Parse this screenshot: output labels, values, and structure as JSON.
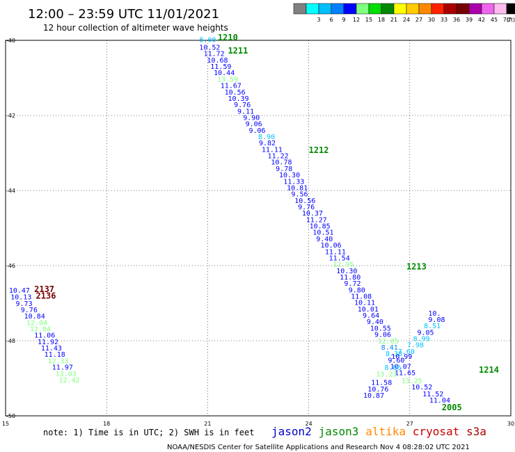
{
  "header": {
    "title": "12:00 – 23:59 UTC 11/01/2021",
    "subtitle": "12 hour collection of altimeter wave heights"
  },
  "legend_scale": {
    "unit": "(ft)",
    "bins": [
      {
        "label": "",
        "color": "#808080"
      },
      {
        "label": "3",
        "color": "#00ffff"
      },
      {
        "label": "6",
        "color": "#00bfff"
      },
      {
        "label": "9",
        "color": "#0080ff"
      },
      {
        "label": "12",
        "color": "#0000ff"
      },
      {
        "label": "15",
        "color": "#80ff80"
      },
      {
        "label": "18",
        "color": "#00dd00"
      },
      {
        "label": "21",
        "color": "#008800"
      },
      {
        "label": "24",
        "color": "#ffff00"
      },
      {
        "label": "27",
        "color": "#ffcc00"
      },
      {
        "label": "30",
        "color": "#ff8800"
      },
      {
        "label": "33",
        "color": "#ff2200"
      },
      {
        "label": "36",
        "color": "#aa0000"
      },
      {
        "label": "39",
        "color": "#770000"
      },
      {
        "label": "42",
        "color": "#aa00aa"
      },
      {
        "label": "45",
        "color": "#ee66ee"
      },
      {
        "label": "70",
        "color": "#ffbbee"
      },
      {
        "label": "",
        "color": "#000000"
      }
    ]
  },
  "footer": {
    "note": "note: 1) Time is in UTC; 2) SWH is in feet",
    "credit": "NOAA/NESDIS Center for Satellite Applications and Research    Nov  4 08:28:02 UTC 2021"
  },
  "satellites": [
    {
      "name": "jason2",
      "color": "#0000cc"
    },
    {
      "name": "jason3",
      "color": "#008800"
    },
    {
      "name": "altika",
      "color": "#ff8800"
    },
    {
      "name": "cryosat",
      "color": "#cc0000"
    },
    {
      "name": "s3a",
      "color": "#aa0000"
    }
  ],
  "map": {
    "x_ticks": [
      15,
      18,
      21,
      24,
      27,
      30
    ],
    "x_tick_labels": [
      "15",
      "18",
      "21",
      "24",
      "27",
      "30"
    ],
    "y_ticks": [
      -40,
      -42,
      -44,
      -46,
      -48,
      -50
    ],
    "y_tick_labels": [
      "-40",
      "-42",
      "-44",
      "-46",
      "-48",
      "-50"
    ],
    "xlim": [
      15,
      30
    ],
    "ylim": [
      -50,
      -40
    ],
    "grid": true,
    "times": [
      {
        "text": "1210",
        "lon": 21.3,
        "lat": -40.0,
        "color": "#008800"
      },
      {
        "text": "1211",
        "lon": 21.6,
        "lat": -40.35,
        "color": "#008800"
      },
      {
        "text": "1212",
        "lon": 24.0,
        "lat": -43.0,
        "color": "#008800"
      },
      {
        "text": "1213",
        "lon": 26.9,
        "lat": -46.1,
        "color": "#008800"
      },
      {
        "text": "1214",
        "lon": 29.05,
        "lat": -48.85,
        "color": "#008800"
      },
      {
        "text": "2005",
        "lon": 27.95,
        "lat": -49.85,
        "color": "#008800"
      },
      {
        "text": "2137",
        "lon": 15.85,
        "lat": -46.7,
        "color": "#770000"
      },
      {
        "text": "2136",
        "lon": 15.9,
        "lat": -46.88,
        "color": "#770000"
      }
    ],
    "observations": [
      {
        "v": "8.00",
        "lon": 20.75,
        "lat": -40.05,
        "c": "#00bfff"
      },
      {
        "v": "10.52",
        "lon": 20.75,
        "lat": -40.25,
        "c": "#0000ff"
      },
      {
        "v": "11.72",
        "lon": 20.88,
        "lat": -40.42,
        "c": "#0000ff"
      },
      {
        "v": "10.68",
        "lon": 20.98,
        "lat": -40.59,
        "c": "#0000ff"
      },
      {
        "v": "11.59",
        "lon": 21.08,
        "lat": -40.76,
        "c": "#0000ff"
      },
      {
        "v": "10.44",
        "lon": 21.18,
        "lat": -40.93,
        "c": "#0000ff"
      },
      {
        "v": "13.59",
        "lon": 21.28,
        "lat": -41.1,
        "c": "#80ff80"
      },
      {
        "v": "11.67",
        "lon": 21.38,
        "lat": -41.27,
        "c": "#0000ff"
      },
      {
        "v": "10.56",
        "lon": 21.5,
        "lat": -41.44,
        "c": "#0000ff"
      },
      {
        "v": "10.39",
        "lon": 21.6,
        "lat": -41.61,
        "c": "#0000ff"
      },
      {
        "v": "9.76",
        "lon": 21.78,
        "lat": -41.78,
        "c": "#0000ff"
      },
      {
        "v": "9.11",
        "lon": 21.88,
        "lat": -41.95,
        "c": "#0000ff"
      },
      {
        "v": "9.90",
        "lon": 22.05,
        "lat": -42.12,
        "c": "#0000ff"
      },
      {
        "v": "9.06",
        "lon": 22.12,
        "lat": -42.29,
        "c": "#0000ff"
      },
      {
        "v": "9.06",
        "lon": 22.22,
        "lat": -42.46,
        "c": "#0000ff"
      },
      {
        "v": "8.90",
        "lon": 22.5,
        "lat": -42.63,
        "c": "#00bfff"
      },
      {
        "v": "9.82",
        "lon": 22.52,
        "lat": -42.8,
        "c": "#0000ff"
      },
      {
        "v": "11.11",
        "lon": 22.6,
        "lat": -42.97,
        "c": "#0000ff"
      },
      {
        "v": "11.22",
        "lon": 22.78,
        "lat": -43.14,
        "c": "#0000ff"
      },
      {
        "v": "10.78",
        "lon": 22.88,
        "lat": -43.31,
        "c": "#0000ff"
      },
      {
        "v": "9.78",
        "lon": 23.02,
        "lat": -43.48,
        "c": "#0000ff"
      },
      {
        "v": "10.30",
        "lon": 23.12,
        "lat": -43.65,
        "c": "#0000ff"
      },
      {
        "v": "11.33",
        "lon": 23.25,
        "lat": -43.82,
        "c": "#0000ff"
      },
      {
        "v": "10.81",
        "lon": 23.35,
        "lat": -43.99,
        "c": "#0000ff"
      },
      {
        "v": "9.56",
        "lon": 23.48,
        "lat": -44.16,
        "c": "#0000ff"
      },
      {
        "v": "10.56",
        "lon": 23.58,
        "lat": -44.33,
        "c": "#0000ff"
      },
      {
        "v": "9.76",
        "lon": 23.68,
        "lat": -44.5,
        "c": "#0000ff"
      },
      {
        "v": "10.37",
        "lon": 23.8,
        "lat": -44.67,
        "c": "#0000ff"
      },
      {
        "v": "11.27",
        "lon": 23.92,
        "lat": -44.84,
        "c": "#0000ff"
      },
      {
        "v": "10.85",
        "lon": 24.02,
        "lat": -45.01,
        "c": "#0000ff"
      },
      {
        "v": "10.51",
        "lon": 24.12,
        "lat": -45.18,
        "c": "#0000ff"
      },
      {
        "v": "9.40",
        "lon": 24.22,
        "lat": -45.35,
        "c": "#0000ff"
      },
      {
        "v": "10.06",
        "lon": 24.35,
        "lat": -45.52,
        "c": "#0000ff"
      },
      {
        "v": "11.11",
        "lon": 24.48,
        "lat": -45.69,
        "c": "#0000ff"
      },
      {
        "v": "11.54",
        "lon": 24.6,
        "lat": -45.86,
        "c": "#0000ff"
      },
      {
        "v": "12.95",
        "lon": 24.72,
        "lat": -46.03,
        "c": "#80ff80"
      },
      {
        "v": "10.30",
        "lon": 24.82,
        "lat": -46.2,
        "c": "#0000ff"
      },
      {
        "v": "11.80",
        "lon": 24.92,
        "lat": -46.37,
        "c": "#0000ff"
      },
      {
        "v": "9.72",
        "lon": 25.05,
        "lat": -46.54,
        "c": "#0000ff"
      },
      {
        "v": "9.80",
        "lon": 25.18,
        "lat": -46.71,
        "c": "#0000ff"
      },
      {
        "v": "11.08",
        "lon": 25.25,
        "lat": -46.88,
        "c": "#0000ff"
      },
      {
        "v": "10.11",
        "lon": 25.35,
        "lat": -47.05,
        "c": "#0000ff"
      },
      {
        "v": "10.01",
        "lon": 25.45,
        "lat": -47.22,
        "c": "#0000ff"
      },
      {
        "v": "9.64",
        "lon": 25.6,
        "lat": -47.39,
        "c": "#0000ff"
      },
      {
        "v": "9.40",
        "lon": 25.72,
        "lat": -47.56,
        "c": "#0000ff"
      },
      {
        "v": "10.55",
        "lon": 25.82,
        "lat": -47.73,
        "c": "#0000ff"
      },
      {
        "v": "9.06",
        "lon": 25.95,
        "lat": -47.9,
        "c": "#0000ff"
      },
      {
        "v": "12.05",
        "lon": 26.05,
        "lat": -48.07,
        "c": "#80ff80"
      },
      {
        "v": "8.41",
        "lon": 26.15,
        "lat": -48.24,
        "c": "#0080ff"
      },
      {
        "v": "8.38",
        "lon": 26.28,
        "lat": -48.41,
        "c": "#00bfff"
      },
      {
        "v": "10.99",
        "lon": 26.45,
        "lat": -48.48,
        "c": "#0000ff"
      },
      {
        "v": "9.60",
        "lon": 26.35,
        "lat": -48.58,
        "c": "#0000ff"
      },
      {
        "v": "10.07",
        "lon": 26.42,
        "lat": -48.75,
        "c": "#0000ff"
      },
      {
        "v": "8.06",
        "lon": 26.25,
        "lat": -48.78,
        "c": "#00bfff"
      },
      {
        "v": "11.65",
        "lon": 26.55,
        "lat": -48.92,
        "c": "#0000ff"
      },
      {
        "v": "13.23",
        "lon": 26.0,
        "lat": -48.95,
        "c": "#80ff80"
      },
      {
        "v": "13.25",
        "lon": 26.75,
        "lat": -49.13,
        "c": "#80ff80"
      },
      {
        "v": "11.58",
        "lon": 25.85,
        "lat": -49.18,
        "c": "#0000ff"
      },
      {
        "v": "10.52",
        "lon": 27.05,
        "lat": -49.3,
        "c": "#0000ff"
      },
      {
        "v": "10.76",
        "lon": 25.75,
        "lat": -49.35,
        "c": "#0000ff"
      },
      {
        "v": "10.87",
        "lon": 25.62,
        "lat": -49.52,
        "c": "#0000ff"
      },
      {
        "v": "11.52",
        "lon": 27.38,
        "lat": -49.48,
        "c": "#0000ff"
      },
      {
        "v": "11.04",
        "lon": 27.58,
        "lat": -49.65,
        "c": "#0000ff"
      },
      {
        "v": "7.60",
        "lon": 26.65,
        "lat": -48.35,
        "c": "#00bfff"
      },
      {
        "v": "7.98",
        "lon": 26.92,
        "lat": -48.18,
        "c": "#00bfff"
      },
      {
        "v": "8.99",
        "lon": 27.1,
        "lat": -48.01,
        "c": "#00bfff"
      },
      {
        "v": "9.05",
        "lon": 27.22,
        "lat": -47.84,
        "c": "#0000ff"
      },
      {
        "v": "8.51",
        "lon": 27.42,
        "lat": -47.67,
        "c": "#00bfff"
      },
      {
        "v": "9.08",
        "lon": 27.55,
        "lat": -47.5,
        "c": "#0000ff"
      },
      {
        "v": "10.",
        "lon": 27.55,
        "lat": -47.33,
        "c": "#0000ff"
      },
      {
        "v": "10.47",
        "lon": 15.1,
        "lat": -46.72,
        "c": "#0000ff"
      },
      {
        "v": "10.13",
        "lon": 15.15,
        "lat": -46.9,
        "c": "#0000ff"
      },
      {
        "v": "9.73",
        "lon": 15.3,
        "lat": -47.07,
        "c": "#0000ff"
      },
      {
        "v": "9.76",
        "lon": 15.45,
        "lat": -47.24,
        "c": "#0000ff"
      },
      {
        "v": "10.84",
        "lon": 15.55,
        "lat": -47.41,
        "c": "#0000ff"
      },
      {
        "v": "12.04",
        "lon": 15.62,
        "lat": -47.58,
        "c": "#80ff80"
      },
      {
        "v": "12.04",
        "lon": 15.72,
        "lat": -47.75,
        "c": "#80ff80"
      },
      {
        "v": "11.06",
        "lon": 15.85,
        "lat": -47.92,
        "c": "#0000ff"
      },
      {
        "v": "11.92",
        "lon": 15.95,
        "lat": -48.09,
        "c": "#0000ff"
      },
      {
        "v": "11.43",
        "lon": 16.05,
        "lat": -48.26,
        "c": "#0000ff"
      },
      {
        "v": "11.18",
        "lon": 16.15,
        "lat": -48.43,
        "c": "#0000ff"
      },
      {
        "v": "12.33",
        "lon": 16.25,
        "lat": -48.6,
        "c": "#80ff80"
      },
      {
        "v": "11.97",
        "lon": 16.38,
        "lat": -48.77,
        "c": "#0000ff"
      },
      {
        "v": "13.03",
        "lon": 16.48,
        "lat": -48.94,
        "c": "#80ff80"
      },
      {
        "v": "12.42",
        "lon": 16.58,
        "lat": -49.11,
        "c": "#80ff80"
      }
    ]
  }
}
